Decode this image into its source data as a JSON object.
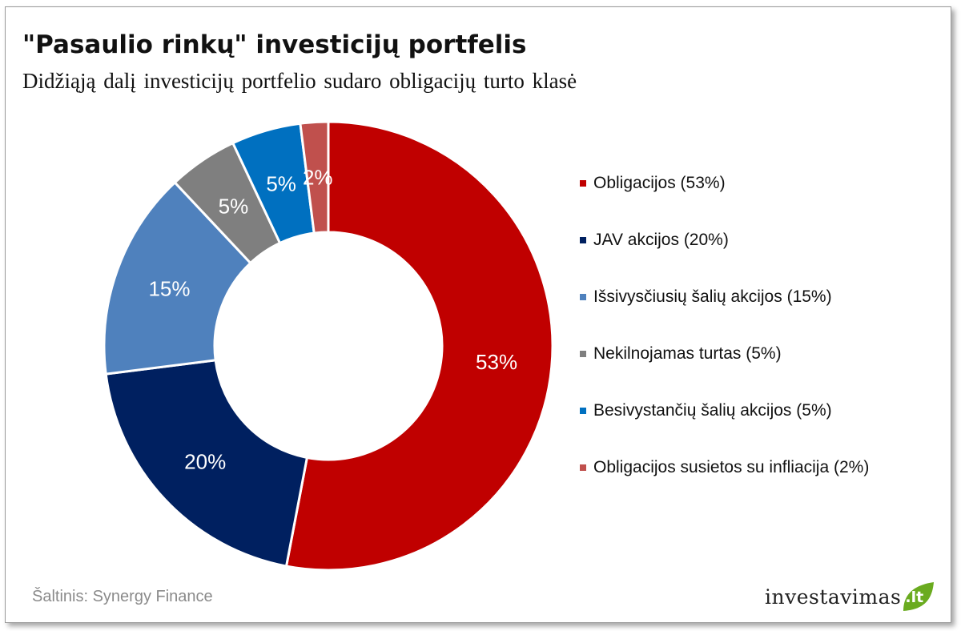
{
  "title": "\"Pasaulio rinkų\" investicijų portfelis",
  "subtitle": "Didžiąją dalį investicijų portfelio sudaro obligacijų turto klasė",
  "source": "Šaltinis: Synergy Finance",
  "brand": {
    "name": "investavimas",
    "tld": ".lt",
    "leaf_color": "#6aab1f"
  },
  "chart_data": {
    "type": "pie",
    "variant": "donut",
    "start_angle_deg": 0,
    "direction": "clockwise",
    "legend_position": "right",
    "slices": [
      {
        "label": "Obligacijos (53%)",
        "value": 53,
        "data_label": "53%",
        "color": "#c00000"
      },
      {
        "label": "JAV akcijos (20%)",
        "value": 20,
        "data_label": "20%",
        "color": "#002060"
      },
      {
        "label": "Išsivysčiusių šalių akcijos (15%)",
        "value": 15,
        "data_label": "15%",
        "color": "#4f81bd"
      },
      {
        "label": "Nekilnojamas turtas (5%)",
        "value": 5,
        "data_label": "5%",
        "color": "#7f7f7f"
      },
      {
        "label": "Besivystančių šalių akcijos (5%)",
        "value": 5,
        "data_label": "5%",
        "color": "#0070c0"
      },
      {
        "label": "Obligacijos susietos su infliacija (2%)",
        "value": 2,
        "data_label": "2%",
        "color": "#c0504d"
      }
    ]
  }
}
